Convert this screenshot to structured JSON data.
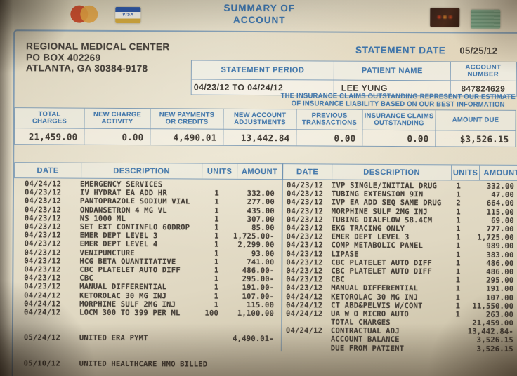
{
  "header": {
    "title_line1": "SUMMARY OF",
    "title_line2": "ACCOUNT",
    "visa_text": "VISA",
    "accent_blue": "#3e74aa",
    "paper_color": "#e2dac5",
    "ink_color": "#45403a"
  },
  "provider": {
    "name": "REGIONAL MEDICAL CENTER",
    "address1": "PO BOX 402269",
    "address2": "ATLANTA, GA 30384-9178"
  },
  "statement": {
    "date_label": "STATEMENT DATE",
    "date_value": "05/25/12",
    "period_label": "STATEMENT PERIOD",
    "period_value": "04/23/12 TO 04/24/12",
    "patient_label": "PATIENT NAME",
    "patient_value": "LEE YUNG",
    "account_label": "ACCOUNT\nNUMBER",
    "account_value": "847824629",
    "notice_line1": "THE INSURANCE CLAIMS OUTSTANDING REPRESENT OUR ESTIMATE",
    "notice_line2": "OF INSURANCE LIABILITY BASED ON OUR BEST INFORMATION"
  },
  "summary": {
    "columns": [
      {
        "label": "TOTAL\nCHARGES",
        "value": "21,459.00"
      },
      {
        "label": "NEW CHARGE\nACTIVITY",
        "value": "0.00"
      },
      {
        "label": "NEW PAYMENTS\nOR CREDITS",
        "value": "4,490.01"
      },
      {
        "label": "NEW ACCOUNT\nADJUSTMENTS",
        "value": "13,442.84"
      },
      {
        "label": "PREVIOUS\nTRANSACTIONS",
        "value": "0.00"
      },
      {
        "label": "INSURANCE CLAIMS\nOUTSTANDING",
        "value": "0.00"
      },
      {
        "label": "AMOUNT DUE",
        "value": "$3,526.15"
      }
    ]
  },
  "details": {
    "headers": [
      "DATE",
      "DESCRIPTION",
      "UNITS",
      "AMOUNT"
    ],
    "left_rows": [
      [
        "04/24/12",
        "EMERGENCY SERVICES",
        "",
        ""
      ],
      [
        "04/23/12",
        "IV HYDRAT EA ADD HR",
        "1",
        "332.00"
      ],
      [
        "04/23/12",
        "PANTOPRAZOLE SODIUM VIAL",
        "1",
        "277.00"
      ],
      [
        "04/23/12",
        "ONDANSETRON 4 MG VL",
        "1",
        "435.00"
      ],
      [
        "04/23/12",
        "NS 1000 ML",
        "1",
        "307.00"
      ],
      [
        "04/23/12",
        "SET EXT CONTINFLO 60DROP",
        "1",
        "85.00"
      ],
      [
        "04/23/12",
        "EMER DEPT LEVEL 3",
        "1",
        "1,725.00-"
      ],
      [
        "04/23/12",
        "EMER DEPT LEVEL 4",
        "1",
        "2,299.00"
      ],
      [
        "04/23/12",
        "VENIPUNCTURE",
        "1",
        "93.00"
      ],
      [
        "04/23/12",
        "HCG BETA QUANTITATIVE",
        "1",
        "741.00"
      ],
      [
        "04/23/12",
        "CBC PLATELET AUTO DIFF",
        "1",
        "486.00-"
      ],
      [
        "04/23/12",
        "CBC",
        "1",
        "295.00-"
      ],
      [
        "04/23/12",
        "MANUAL DIFFERENTIAL",
        "1",
        "191.00-"
      ],
      [
        "04/24/12",
        "KETOROLAC 30 MG INJ",
        "1",
        "107.00-"
      ],
      [
        "04/24/12",
        "MORPHINE SULF 2MG INJ",
        "1",
        "115.00"
      ],
      [
        "04/24/12",
        "LOCM 300 TO 399 PER ML",
        "100",
        "1,100.00"
      ],
      [
        "",
        "",
        "",
        ""
      ],
      [
        "",
        "",
        "",
        ""
      ],
      [
        "05/24/12",
        "UNITED ERA PYMT",
        "",
        "4,490.01-"
      ],
      [
        "",
        "",
        "",
        ""
      ],
      [
        "",
        "",
        "",
        ""
      ],
      [
        "05/10/12",
        "UNITED HEALTHCARE HMO BILLED",
        "",
        ""
      ]
    ],
    "right_rows": [
      [
        "04/23/12",
        "IVP SINGLE/INITIAL DRUG",
        "1",
        "332.00"
      ],
      [
        "04/23/12",
        "TUBING EXTENSION 9IN",
        "1",
        "47.00"
      ],
      [
        "04/23/12",
        "IVP EA ADD SEQ SAME DRUG",
        "2",
        "664.00"
      ],
      [
        "04/23/12",
        "MORPHINE SULF 2MG INJ",
        "1",
        "115.00"
      ],
      [
        "04/23/12",
        "TUBING DIALFLOW 58.4CM",
        "1",
        "69.00"
      ],
      [
        "04/23/12",
        "EKG TRACING ONLY",
        "1",
        "777.00"
      ],
      [
        "04/23/12",
        "EMER DEPT LEVEL 3",
        "1",
        "1,725.00"
      ],
      [
        "04/23/12",
        "COMP METABOLIC PANEL",
        "1",
        "989.00"
      ],
      [
        "04/23/12",
        "LIPASE",
        "1",
        "383.00"
      ],
      [
        "04/23/12",
        "CBC PLATELET AUTO DIFF",
        "1",
        "486.00"
      ],
      [
        "04/23/12",
        "CBC PLATELET AUTO DIFF",
        "1",
        "486.00"
      ],
      [
        "04/23/12",
        "CBC",
        "1",
        "295.00"
      ],
      [
        "04/23/12",
        "MANUAL DIFFERENTIAL",
        "1",
        "191.00"
      ],
      [
        "04/24/12",
        "KETOROLAC 30 MG INJ",
        "1",
        "107.00"
      ],
      [
        "04/24/12",
        "CT ABD&PELVIS W/CONT",
        "1",
        "11,550.00"
      ],
      [
        "04/24/12",
        "UA W O MICRO AUTO",
        "1",
        "263.00"
      ],
      [
        "",
        "TOTAL CHARGES",
        "",
        "21,459.00"
      ],
      [
        "04/24/12",
        "CONTRACTUAL ADJ",
        "",
        "13,442.84-"
      ],
      [
        "",
        "ACCOUNT BALANCE",
        "",
        "3,526.15"
      ],
      [
        "",
        "DUE FROM PATIENT",
        "",
        "3,526.15"
      ]
    ]
  }
}
